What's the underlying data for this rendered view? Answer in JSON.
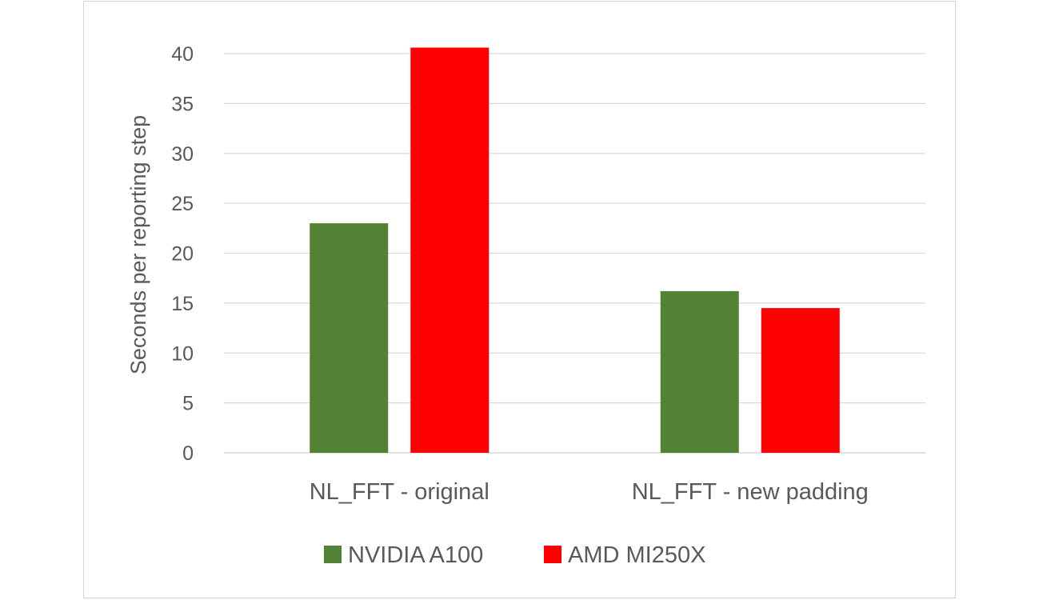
{
  "chart_data": {
    "type": "bar",
    "categories": [
      "NL_FFT - original",
      "NL_FFT - new padding"
    ],
    "series": [
      {
        "name": "NVIDIA A100",
        "values": [
          23.0,
          16.2
        ],
        "color": "#548235"
      },
      {
        "name": "AMD MI250X",
        "values": [
          40.6,
          14.5
        ],
        "color": "#ff0000"
      }
    ],
    "title": "",
    "xlabel": "",
    "ylabel": "Seconds per reporting step",
    "ylim": [
      0,
      40
    ],
    "yticks": [
      0,
      5,
      10,
      15,
      20,
      25,
      30,
      35,
      40
    ],
    "grid": true,
    "legend_position": "bottom"
  }
}
